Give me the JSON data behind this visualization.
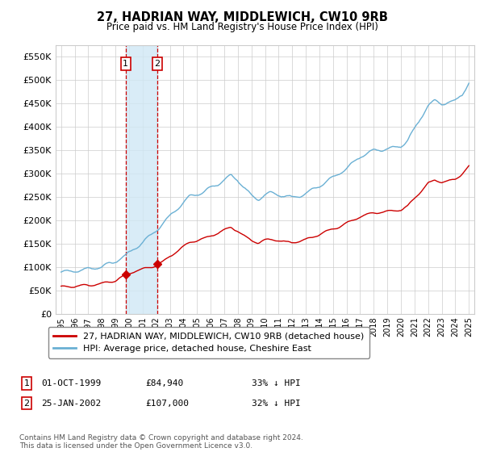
{
  "title": "27, HADRIAN WAY, MIDDLEWICH, CW10 9RB",
  "subtitle": "Price paid vs. HM Land Registry's House Price Index (HPI)",
  "hpi_label": "HPI: Average price, detached house, Cheshire East",
  "property_label": "27, HADRIAN WAY, MIDDLEWICH, CW10 9RB (detached house)",
  "hpi_color": "#6ab0d4",
  "property_color": "#cc0000",
  "vline_color": "#cc0000",
  "shade_color": "#d0e8f5",
  "ylim": [
    0,
    575000
  ],
  "yticks": [
    0,
    50000,
    100000,
    150000,
    200000,
    250000,
    300000,
    350000,
    400000,
    450000,
    500000,
    550000
  ],
  "sale1_date": "01-OCT-1999",
  "sale1_price": 84940,
  "sale1_pct": "33% ↓ HPI",
  "sale2_date": "25-JAN-2002",
  "sale2_price": 107000,
  "sale2_pct": "32% ↓ HPI",
  "footer": "Contains HM Land Registry data © Crown copyright and database right 2024.\nThis data is licensed under the Open Government Licence v3.0.",
  "background_color": "#ffffff",
  "grid_color": "#cccccc",
  "sale1_x": 1999.75,
  "sale2_x": 2002.083
}
